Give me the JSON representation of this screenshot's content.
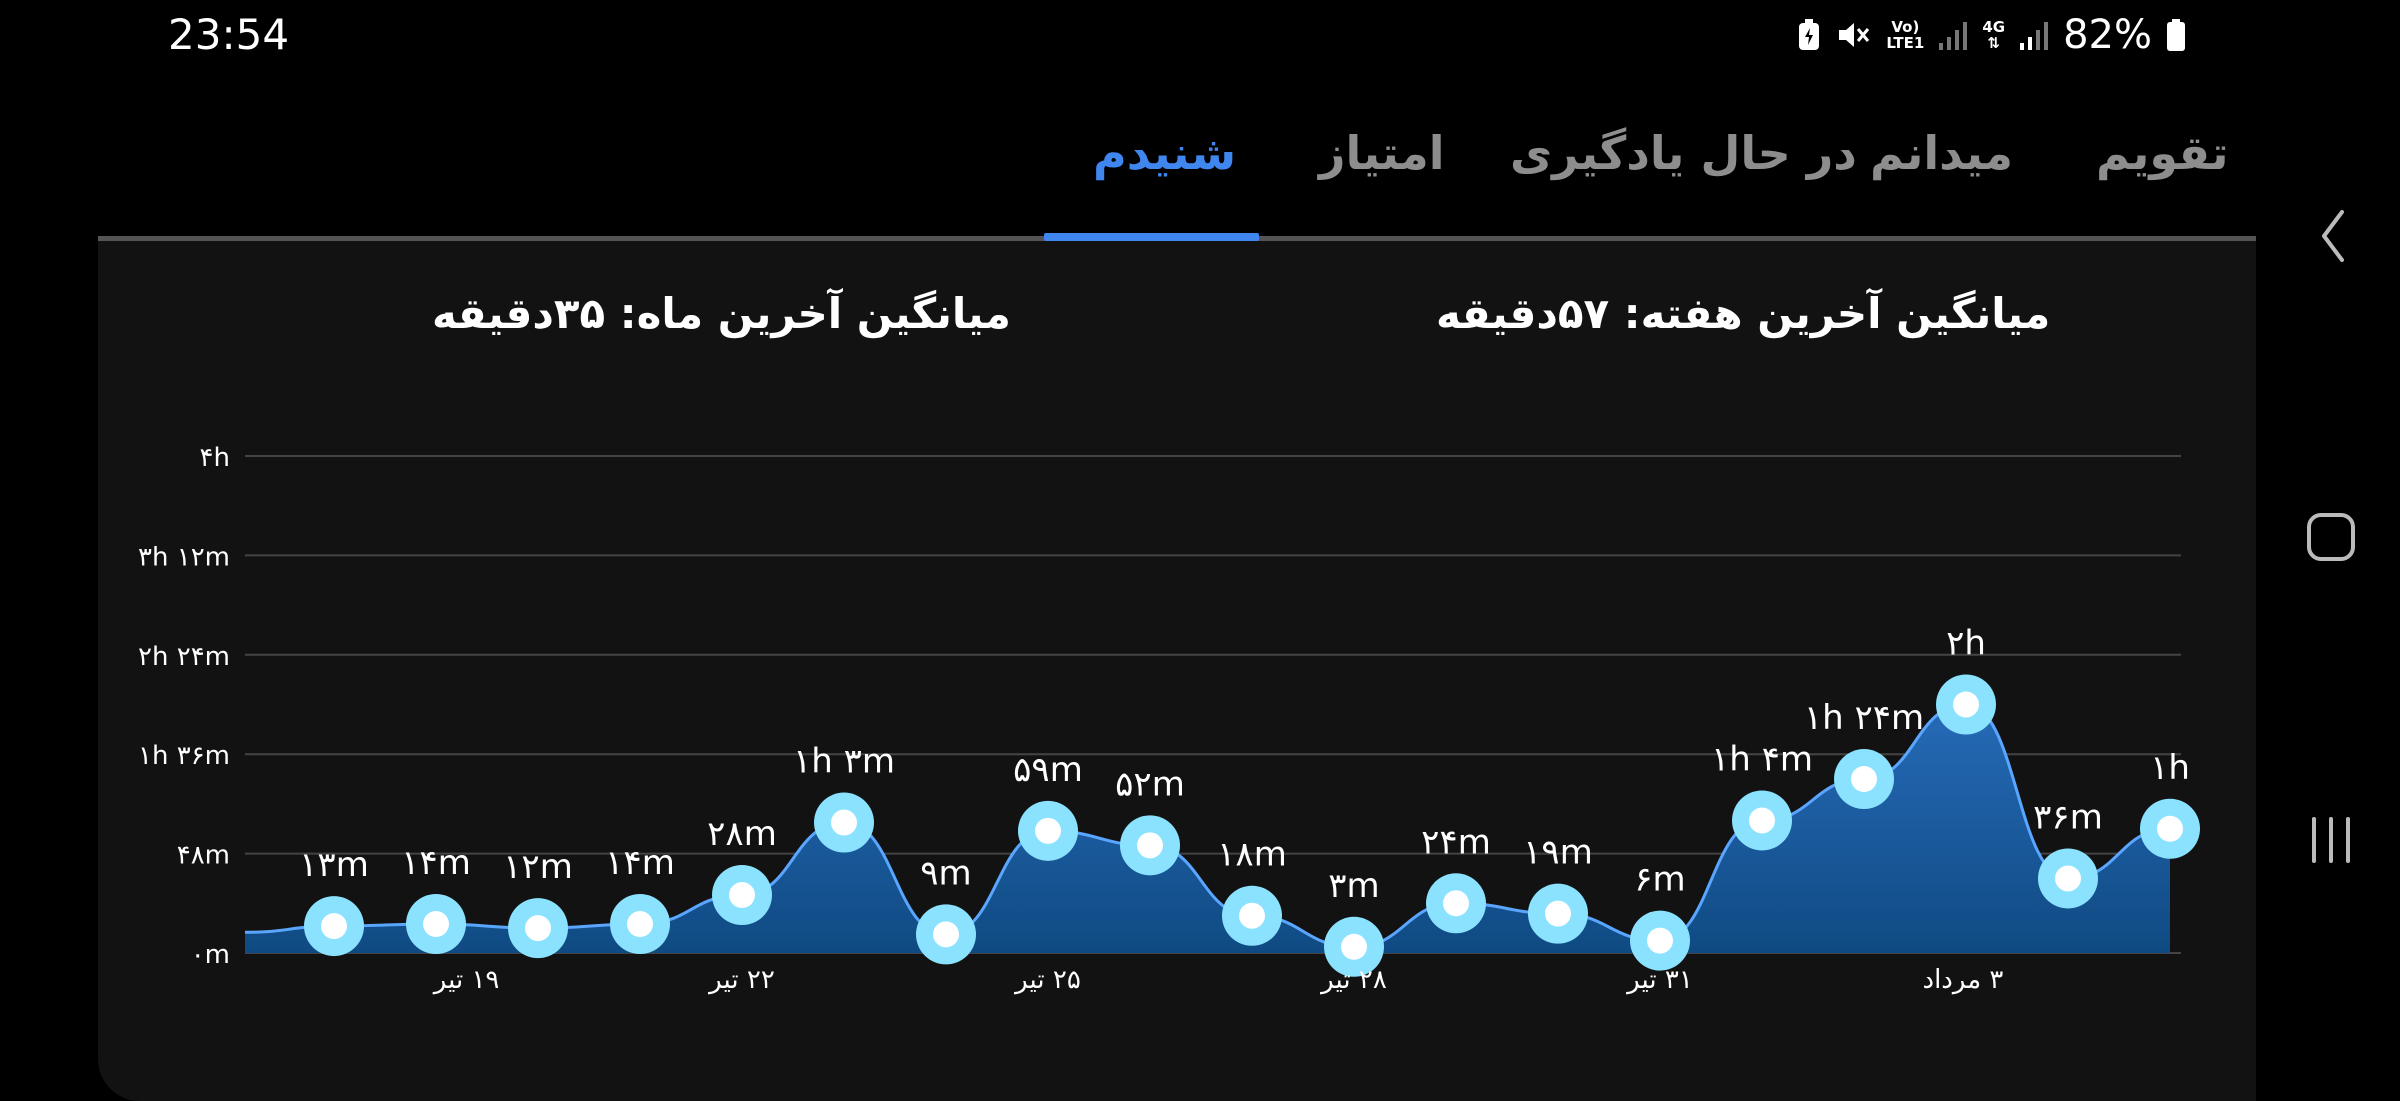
{
  "status_bar": {
    "time": "23:54",
    "network_top": "Vo)",
    "network_bottom": "LTE1",
    "network_4g": "4G",
    "battery_percent": "82%",
    "icons": [
      "battery-saver-icon",
      "mute-icon",
      "volte-icon",
      "signal-icon",
      "4g-icon",
      "signal-icon",
      "battery-icon"
    ]
  },
  "tabs": [
    {
      "label": "تقویم",
      "active": false
    },
    {
      "label": "میدانم",
      "active": false
    },
    {
      "label": "در حال یادگیری",
      "active": false
    },
    {
      "label": "امتیاز",
      "active": false
    },
    {
      "label": "شنیدم",
      "active": true
    }
  ],
  "summary": {
    "week_average": "میانگین آخرین هفته: ۵۷دقیقه",
    "month_average": "میانگین آخرین ماه: ۳۵دقیقه"
  },
  "colors": {
    "accent": "#3f86ee",
    "point_outer": "#8ae2ff",
    "area_top": "#3d8bee",
    "area_bottom": "#0f4a82"
  },
  "chart_data": {
    "type": "area",
    "unit": "minutes",
    "ylim": [
      0,
      240
    ],
    "y_ticks": [
      {
        "value": 0,
        "label": "۰m"
      },
      {
        "value": 48,
        "label": "۴۸m"
      },
      {
        "value": 96,
        "label": "۱h ۳۶m"
      },
      {
        "value": 144,
        "label": "۲h ۲۴m"
      },
      {
        "value": 192,
        "label": "۳h ۱۲m"
      },
      {
        "value": 240,
        "label": "۴h"
      }
    ],
    "x_tick_labels": [
      {
        "index": 1.3,
        "label": "۱۹ تیر"
      },
      {
        "index": 4,
        "label": "۲۲ تیر"
      },
      {
        "index": 7,
        "label": "۲۵ تیر"
      },
      {
        "index": 10,
        "label": "۲۸ تیر"
      },
      {
        "index": 13,
        "label": "۳۱ تیر"
      },
      {
        "index": 15.97,
        "label": "۳ مرداد"
      }
    ],
    "grid": true,
    "leading_value": 10,
    "points": [
      {
        "value": 13,
        "label": "۱۳m"
      },
      {
        "value": 14,
        "label": "۱۴m"
      },
      {
        "value": 12,
        "label": "۱۲m"
      },
      {
        "value": 14,
        "label": "۱۴m"
      },
      {
        "value": 28,
        "label": "۲۸m"
      },
      {
        "value": 63,
        "label": "۱h ۳m"
      },
      {
        "value": 9,
        "label": "۹m"
      },
      {
        "value": 59,
        "label": "۵۹m"
      },
      {
        "value": 52,
        "label": "۵۲m"
      },
      {
        "value": 18,
        "label": "۱۸m"
      },
      {
        "value": 3,
        "label": "۳m"
      },
      {
        "value": 24,
        "label": "۲۴m"
      },
      {
        "value": 19,
        "label": "۱۹m"
      },
      {
        "value": 6,
        "label": "۶m"
      },
      {
        "value": 64,
        "label": "۱h ۴m"
      },
      {
        "value": 84,
        "label": "۱h ۲۴m"
      },
      {
        "value": 120,
        "label": "۲h"
      },
      {
        "value": 36,
        "label": "۳۶m"
      },
      {
        "value": 60,
        "label": "۱h"
      }
    ]
  }
}
